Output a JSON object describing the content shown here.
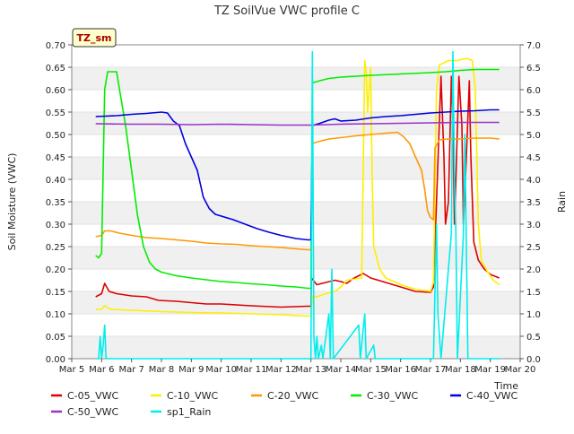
{
  "chart_data": {
    "type": "line",
    "title": "TZ SoilVue VWC profile C",
    "site_badge": "TZ_sm",
    "xlabel": "Time",
    "ylabel": "Soil Moisture (VWC)",
    "y2label": "Rain",
    "x_ticks": [
      "Mar 5",
      "Mar 6",
      "Mar 7",
      "Mar 8",
      "Mar 9",
      "Mar 10",
      "Mar 11",
      "Mar 12",
      "Mar 13",
      "Mar 14",
      "Mar 15",
      "Mar 16",
      "Mar 17",
      "Mar 18",
      "Mar 19",
      "Mar 20"
    ],
    "y_ticks": [
      "0.00",
      "0.05",
      "0.10",
      "0.15",
      "0.20",
      "0.25",
      "0.30",
      "0.35",
      "0.40",
      "0.45",
      "0.50",
      "0.55",
      "0.60",
      "0.65",
      "0.70"
    ],
    "y2_ticks": [
      "0.0",
      "0.5",
      "1.0",
      "1.5",
      "2.0",
      "2.5",
      "3.0",
      "3.5",
      "4.0",
      "4.5",
      "5.0",
      "5.5",
      "6.0",
      "6.5",
      "7.0"
    ],
    "xlim": [
      5,
      20
    ],
    "ylim": [
      0,
      0.7
    ],
    "y2lim": [
      0,
      7.0
    ],
    "x_unit": "day of March",
    "grid": "horizontal bands",
    "legend_position": "bottom",
    "series": [
      {
        "name": "C-05_VWC",
        "color": "#dd0000",
        "axis": "left",
        "points": [
          [
            5.8,
            0.138
          ],
          [
            6.0,
            0.145
          ],
          [
            6.1,
            0.168
          ],
          [
            6.25,
            0.15
          ],
          [
            6.5,
            0.145
          ],
          [
            7.0,
            0.14
          ],
          [
            7.5,
            0.138
          ],
          [
            7.9,
            0.13
          ],
          [
            8.5,
            0.128
          ],
          [
            9.0,
            0.125
          ],
          [
            9.5,
            0.122
          ],
          [
            10.0,
            0.122
          ],
          [
            11.0,
            0.118
          ],
          [
            12.0,
            0.115
          ],
          [
            12.9,
            0.117
          ],
          [
            13.0,
            0.117
          ],
          [
            13.02,
            0.18
          ],
          [
            13.2,
            0.165
          ],
          [
            13.5,
            0.17
          ],
          [
            13.8,
            0.175
          ],
          [
            14.0,
            0.172
          ],
          [
            14.2,
            0.168
          ],
          [
            14.4,
            0.178
          ],
          [
            14.6,
            0.185
          ],
          [
            14.75,
            0.19
          ],
          [
            15.0,
            0.18
          ],
          [
            15.5,
            0.17
          ],
          [
            16.0,
            0.16
          ],
          [
            16.5,
            0.15
          ],
          [
            17.0,
            0.148
          ],
          [
            17.1,
            0.16
          ],
          [
            17.2,
            0.35
          ],
          [
            17.35,
            0.63
          ],
          [
            17.45,
            0.45
          ],
          [
            17.5,
            0.3
          ],
          [
            17.6,
            0.35
          ],
          [
            17.7,
            0.63
          ],
          [
            17.75,
            0.52
          ],
          [
            17.8,
            0.3
          ],
          [
            17.85,
            0.4
          ],
          [
            17.95,
            0.63
          ],
          [
            18.05,
            0.52
          ],
          [
            18.1,
            0.3
          ],
          [
            18.2,
            0.45
          ],
          [
            18.3,
            0.62
          ],
          [
            18.35,
            0.45
          ],
          [
            18.45,
            0.26
          ],
          [
            18.6,
            0.22
          ],
          [
            18.8,
            0.2
          ],
          [
            19.0,
            0.188
          ],
          [
            19.3,
            0.18
          ]
        ]
      },
      {
        "name": "C-10_VWC",
        "color": "#ffee00",
        "axis": "left",
        "points": [
          [
            5.8,
            0.11
          ],
          [
            6.0,
            0.11
          ],
          [
            6.1,
            0.118
          ],
          [
            6.3,
            0.11
          ],
          [
            7.0,
            0.108
          ],
          [
            8.0,
            0.105
          ],
          [
            9.0,
            0.103
          ],
          [
            10.0,
            0.102
          ],
          [
            11.0,
            0.1
          ],
          [
            12.0,
            0.098
          ],
          [
            12.9,
            0.095
          ],
          [
            13.0,
            0.095
          ],
          [
            13.05,
            0.14
          ],
          [
            13.2,
            0.138
          ],
          [
            13.5,
            0.145
          ],
          [
            13.8,
            0.15
          ],
          [
            14.0,
            0.16
          ],
          [
            14.2,
            0.175
          ],
          [
            14.5,
            0.178
          ],
          [
            14.7,
            0.18
          ],
          [
            14.8,
            0.665
          ],
          [
            14.85,
            0.64
          ],
          [
            14.9,
            0.55
          ],
          [
            15.0,
            0.65
          ],
          [
            15.05,
            0.4
          ],
          [
            15.1,
            0.25
          ],
          [
            15.3,
            0.2
          ],
          [
            15.5,
            0.18
          ],
          [
            16.0,
            0.165
          ],
          [
            16.5,
            0.155
          ],
          [
            17.0,
            0.15
          ],
          [
            17.1,
            0.17
          ],
          [
            17.2,
            0.6
          ],
          [
            17.3,
            0.655
          ],
          [
            17.6,
            0.665
          ],
          [
            17.9,
            0.665
          ],
          [
            18.2,
            0.67
          ],
          [
            18.4,
            0.665
          ],
          [
            18.5,
            0.6
          ],
          [
            18.6,
            0.3
          ],
          [
            18.7,
            0.22
          ],
          [
            18.9,
            0.195
          ],
          [
            19.1,
            0.175
          ],
          [
            19.3,
            0.165
          ]
        ]
      },
      {
        "name": "C-20_VWC",
        "color": "#ff9900",
        "axis": "left",
        "points": [
          [
            5.8,
            0.272
          ],
          [
            6.0,
            0.275
          ],
          [
            6.1,
            0.285
          ],
          [
            6.3,
            0.285
          ],
          [
            6.6,
            0.28
          ],
          [
            7.0,
            0.275
          ],
          [
            7.5,
            0.27
          ],
          [
            8.0,
            0.268
          ],
          [
            8.5,
            0.265
          ],
          [
            9.0,
            0.262
          ],
          [
            9.5,
            0.258
          ],
          [
            10.0,
            0.256
          ],
          [
            10.5,
            0.255
          ],
          [
            11.0,
            0.252
          ],
          [
            11.5,
            0.25
          ],
          [
            12.0,
            0.248
          ],
          [
            12.5,
            0.245
          ],
          [
            12.9,
            0.243
          ],
          [
            13.0,
            0.243
          ],
          [
            13.05,
            0.48
          ],
          [
            13.3,
            0.485
          ],
          [
            13.6,
            0.49
          ],
          [
            14.0,
            0.493
          ],
          [
            14.5,
            0.497
          ],
          [
            15.0,
            0.5
          ],
          [
            15.5,
            0.503
          ],
          [
            15.9,
            0.505
          ],
          [
            16.1,
            0.495
          ],
          [
            16.3,
            0.48
          ],
          [
            16.5,
            0.45
          ],
          [
            16.7,
            0.42
          ],
          [
            16.8,
            0.38
          ],
          [
            16.9,
            0.33
          ],
          [
            17.0,
            0.315
          ],
          [
            17.1,
            0.31
          ],
          [
            17.15,
            0.47
          ],
          [
            17.3,
            0.488
          ],
          [
            17.6,
            0.49
          ],
          [
            18.0,
            0.49
          ],
          [
            18.5,
            0.492
          ],
          [
            19.0,
            0.492
          ],
          [
            19.3,
            0.49
          ]
        ]
      },
      {
        "name": "C-30_VWC",
        "color": "#00ee00",
        "axis": "left",
        "points": [
          [
            5.8,
            0.23
          ],
          [
            5.9,
            0.225
          ],
          [
            6.0,
            0.235
          ],
          [
            6.1,
            0.6
          ],
          [
            6.2,
            0.64
          ],
          [
            6.5,
            0.64
          ],
          [
            6.6,
            0.6
          ],
          [
            6.8,
            0.52
          ],
          [
            7.0,
            0.42
          ],
          [
            7.2,
            0.32
          ],
          [
            7.4,
            0.25
          ],
          [
            7.6,
            0.215
          ],
          [
            7.8,
            0.2
          ],
          [
            8.0,
            0.193
          ],
          [
            8.5,
            0.185
          ],
          [
            9.0,
            0.18
          ],
          [
            9.5,
            0.176
          ],
          [
            10.0,
            0.172
          ],
          [
            10.5,
            0.17
          ],
          [
            11.0,
            0.167
          ],
          [
            11.5,
            0.165
          ],
          [
            12.0,
            0.162
          ],
          [
            12.5,
            0.16
          ],
          [
            12.9,
            0.157
          ],
          [
            13.0,
            0.157
          ],
          [
            13.05,
            0.615
          ],
          [
            13.3,
            0.62
          ],
          [
            13.6,
            0.625
          ],
          [
            14.0,
            0.628
          ],
          [
            15.0,
            0.632
          ],
          [
            16.0,
            0.635
          ],
          [
            17.0,
            0.638
          ],
          [
            17.5,
            0.64
          ],
          [
            18.0,
            0.643
          ],
          [
            18.5,
            0.645
          ],
          [
            19.0,
            0.645
          ],
          [
            19.3,
            0.645
          ]
        ]
      },
      {
        "name": "C-40_VWC",
        "color": "#0000dd",
        "axis": "left",
        "points": [
          [
            5.8,
            0.54
          ],
          [
            6.5,
            0.542
          ],
          [
            7.0,
            0.545
          ],
          [
            7.5,
            0.547
          ],
          [
            8.0,
            0.55
          ],
          [
            8.2,
            0.548
          ],
          [
            8.4,
            0.53
          ],
          [
            8.6,
            0.52
          ],
          [
            8.8,
            0.48
          ],
          [
            9.0,
            0.45
          ],
          [
            9.2,
            0.42
          ],
          [
            9.4,
            0.36
          ],
          [
            9.6,
            0.335
          ],
          [
            9.8,
            0.322
          ],
          [
            10.0,
            0.318
          ],
          [
            10.4,
            0.31
          ],
          [
            10.8,
            0.3
          ],
          [
            11.2,
            0.29
          ],
          [
            11.6,
            0.282
          ],
          [
            12.0,
            0.275
          ],
          [
            12.5,
            0.268
          ],
          [
            12.9,
            0.265
          ],
          [
            13.0,
            0.265
          ],
          [
            13.05,
            0.52
          ],
          [
            13.3,
            0.525
          ],
          [
            13.6,
            0.532
          ],
          [
            13.8,
            0.535
          ],
          [
            14.0,
            0.53
          ],
          [
            14.5,
            0.532
          ],
          [
            15.0,
            0.537
          ],
          [
            15.5,
            0.54
          ],
          [
            16.0,
            0.542
          ],
          [
            16.5,
            0.545
          ],
          [
            17.0,
            0.548
          ],
          [
            17.5,
            0.55
          ],
          [
            18.0,
            0.552
          ],
          [
            18.5,
            0.553
          ],
          [
            19.0,
            0.555
          ],
          [
            19.3,
            0.555
          ]
        ]
      },
      {
        "name": "C-50_VWC",
        "color": "#9933cc",
        "axis": "left",
        "points": [
          [
            5.8,
            0.524
          ],
          [
            7.0,
            0.523
          ],
          [
            8.0,
            0.523
          ],
          [
            9.0,
            0.522
          ],
          [
            10.0,
            0.523
          ],
          [
            11.0,
            0.522
          ],
          [
            12.0,
            0.521
          ],
          [
            13.0,
            0.521
          ],
          [
            14.0,
            0.523
          ],
          [
            15.0,
            0.524
          ],
          [
            16.0,
            0.525
          ],
          [
            17.0,
            0.526
          ],
          [
            18.0,
            0.527
          ],
          [
            19.0,
            0.527
          ],
          [
            19.3,
            0.527
          ]
        ]
      },
      {
        "name": "sp1_Rain",
        "color": "#00eeee",
        "axis": "right",
        "points": [
          [
            5.8,
            0.0
          ],
          [
            5.9,
            0.0
          ],
          [
            5.95,
            0.5
          ],
          [
            6.0,
            0.0
          ],
          [
            6.05,
            0.3
          ],
          [
            6.1,
            0.75
          ],
          [
            6.15,
            0.0
          ],
          [
            13.0,
            0.0
          ],
          [
            13.05,
            6.85
          ],
          [
            13.1,
            0.5
          ],
          [
            13.15,
            0.0
          ],
          [
            13.2,
            0.5
          ],
          [
            13.25,
            0.0
          ],
          [
            13.35,
            0.3
          ],
          [
            13.4,
            0.0
          ],
          [
            13.6,
            1.0
          ],
          [
            13.65,
            0.0
          ],
          [
            13.7,
            2.0
          ],
          [
            13.75,
            0.0
          ],
          [
            14.6,
            0.75
          ],
          [
            14.65,
            0.0
          ],
          [
            14.8,
            1.0
          ],
          [
            14.85,
            0.0
          ],
          [
            15.1,
            0.3
          ],
          [
            15.15,
            0.0
          ],
          [
            17.1,
            0.0
          ],
          [
            17.15,
            1.5
          ],
          [
            17.2,
            3.0
          ],
          [
            17.25,
            1.0
          ],
          [
            17.3,
            0.5
          ],
          [
            17.35,
            0.0
          ],
          [
            17.7,
            2.8
          ],
          [
            17.75,
            6.85
          ],
          [
            17.8,
            4.0
          ],
          [
            17.85,
            2.8
          ],
          [
            17.9,
            0.0
          ],
          [
            18.1,
            2.8
          ],
          [
            18.15,
            5.0
          ],
          [
            18.2,
            2.5
          ],
          [
            18.25,
            0.0
          ],
          [
            19.3,
            0.0
          ]
        ]
      }
    ]
  }
}
